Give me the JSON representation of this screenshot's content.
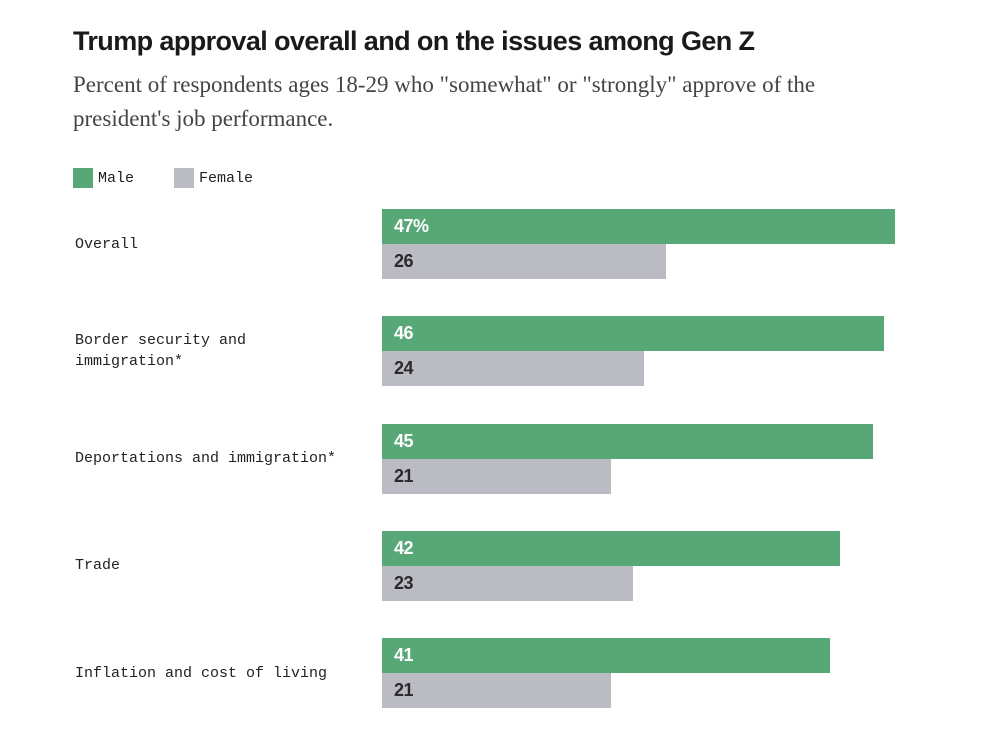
{
  "chart_data": {
    "type": "bar",
    "orientation": "horizontal",
    "title": "Trump approval overall and on the issues among Gen Z",
    "subtitle": "Percent of respondents ages 18-29 who \"somewhat\" or \"strongly\" approve of the president's job performance.",
    "categories": [
      "Overall",
      "Border security and immigration*",
      "Deportations and immigration*",
      "Trade",
      "Inflation and cost of living"
    ],
    "series": [
      {
        "name": "Male",
        "color": "#58a777",
        "values": [
          47,
          46,
          45,
          42,
          41
        ],
        "labels": [
          "47%",
          "46",
          "45",
          "42",
          "41"
        ]
      },
      {
        "name": "Female",
        "color": "#bbbbc4",
        "values": [
          26,
          24,
          21,
          23,
          21
        ],
        "labels": [
          "26",
          "24",
          "21",
          "23",
          "21"
        ]
      }
    ],
    "xlim": [
      0,
      47
    ],
    "grid": false,
    "legend": "top-left"
  }
}
